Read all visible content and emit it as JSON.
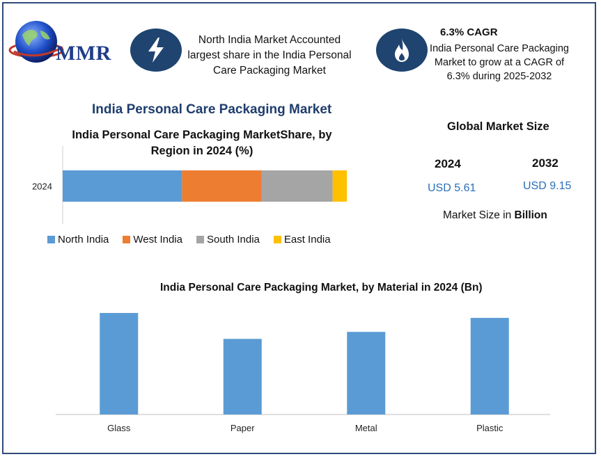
{
  "logo": {
    "text": "MMR"
  },
  "header": {
    "info1": {
      "icon": "lightning-icon",
      "text": "North India Market Accounted largest share in the India Personal Care Packaging Market"
    },
    "info2": {
      "icon": "flame-icon",
      "title": "6.3% CAGR",
      "text": "India Personal Care Packaging Market to grow at a CAGR of 6.3% during 2025-2032"
    }
  },
  "main_title": "India Personal Care Packaging Market",
  "global_market": {
    "title": "Global Market Size",
    "years": [
      {
        "year": "2024",
        "value": "USD 5.61"
      },
      {
        "year": "2032",
        "value": "USD 9.15"
      }
    ],
    "note_prefix": "Market Size in ",
    "note_unit": "Billion"
  },
  "chart_data": [
    {
      "type": "bar",
      "orientation": "horizontal-stacked",
      "title": "India Personal Care Packaging MarketShare, by Region in 2024 (%)",
      "categories": [
        "2024"
      ],
      "series": [
        {
          "name": "North India",
          "values": [
            42
          ],
          "color": "#5b9bd5"
        },
        {
          "name": "West India",
          "values": [
            28
          ],
          "color": "#ed7d31"
        },
        {
          "name": "South India",
          "values": [
            25
          ],
          "color": "#a5a5a5"
        },
        {
          "name": "East India",
          "values": [
            5
          ],
          "color": "#ffc000"
        }
      ],
      "legend": "bottom"
    },
    {
      "type": "bar",
      "title": "India Personal Care Packaging Market, by Material in 2024 (Bn)",
      "categories": [
        "Glass",
        "Paper",
        "Metal",
        "Plastic"
      ],
      "values": [
        1.45,
        1.08,
        1.18,
        1.38
      ],
      "ylim": [
        0,
        1.5
      ],
      "color": "#5b9bd5"
    }
  ]
}
